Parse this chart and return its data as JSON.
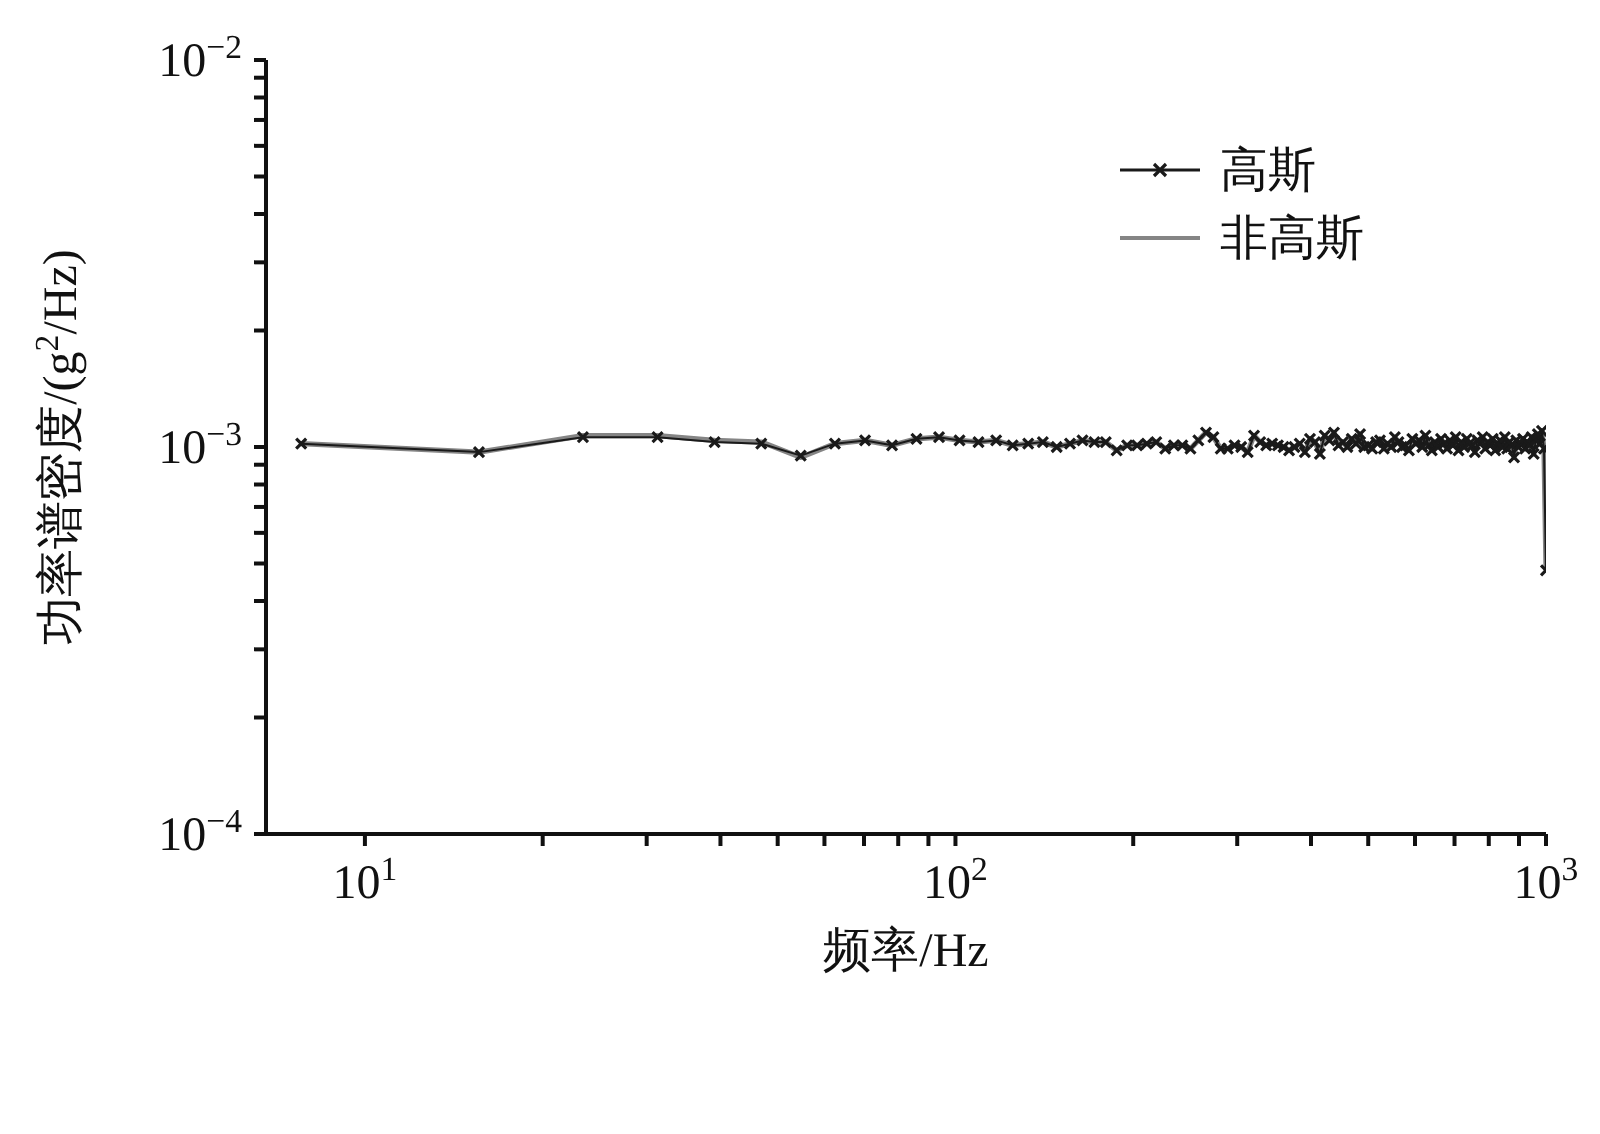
{
  "chart_data": {
    "type": "line",
    "xlabel": "频率/Hz",
    "ylabel": "功率谱密度/(g$^{2}$/Hz)",
    "log": "xy",
    "grid": false,
    "legend": "top right",
    "xlim": [
      6.8,
      1000
    ],
    "ylim": [
      0.0001,
      0.01
    ],
    "xticks": [
      {
        "value": 10,
        "label": "10$^{1}$"
      },
      {
        "value": 20,
        "label": null
      },
      {
        "value": 30,
        "label": null
      },
      {
        "value": 40,
        "label": null
      },
      {
        "value": 50,
        "label": null
      },
      {
        "value": 60,
        "label": null
      },
      {
        "value": 70,
        "label": null
      },
      {
        "value": 80,
        "label": null
      },
      {
        "value": 90,
        "label": null
      },
      {
        "value": 100,
        "label": "10$^{2}$"
      },
      {
        "value": 200,
        "label": null
      },
      {
        "value": 300,
        "label": null
      },
      {
        "value": 400,
        "label": null
      },
      {
        "value": 500,
        "label": null
      },
      {
        "value": 600,
        "label": null
      },
      {
        "value": 700,
        "label": null
      },
      {
        "value": 800,
        "label": null
      },
      {
        "value": 900,
        "label": null
      },
      {
        "value": 1000,
        "label": "10$^{3}$"
      }
    ],
    "yticks": [
      {
        "value": 0.0001,
        "label": "10$^{−4}$"
      },
      {
        "value": 0.0002,
        "label": null
      },
      {
        "value": 0.0003,
        "label": null
      },
      {
        "value": 0.0004,
        "label": null
      },
      {
        "value": 0.0005,
        "label": null
      },
      {
        "value": 0.0006,
        "label": null
      },
      {
        "value": 0.0007,
        "label": null
      },
      {
        "value": 0.0008,
        "label": null
      },
      {
        "value": 0.0009,
        "label": null
      },
      {
        "value": 0.001,
        "label": "10$^{−3}$"
      },
      {
        "value": 0.002,
        "label": null
      },
      {
        "value": 0.003,
        "label": null
      },
      {
        "value": 0.004,
        "label": null
      },
      {
        "value": 0.005,
        "label": null
      },
      {
        "value": 0.006,
        "label": null
      },
      {
        "value": 0.007,
        "label": null
      },
      {
        "value": 0.008,
        "label": null
      },
      {
        "value": 0.009,
        "label": null
      },
      {
        "value": 0.01,
        "label": "10$^{−2}$"
      }
    ],
    "x": [
      7.8,
      15.6,
      23.4,
      31.3,
      39.1,
      46.9,
      54.7,
      62.5,
      70.3,
      78.1,
      85.9,
      93.8,
      101.6,
      109.4,
      117.2,
      125,
      132.8,
      140.6,
      148.4,
      156.3,
      164.1,
      171.9,
      179.7,
      187.5,
      195.3,
      203.1,
      210.9,
      218.8,
      226.6,
      234.4,
      242.2,
      250,
      257.8,
      265.6,
      273.4,
      281.3,
      289.1,
      296.9,
      304.7,
      312.5,
      320.3,
      328.1,
      335.9,
      343.8,
      351.6,
      359.4,
      367.2,
      375,
      382.8,
      390.6,
      398.4,
      406.3,
      414.1,
      421.9,
      429.7,
      437.5,
      445.3,
      453.1,
      460.9,
      468.8,
      476.6,
      484.4,
      492.2,
      500,
      507.8,
      515.6,
      523.4,
      531.3,
      539.1,
      546.9,
      554.7,
      562.5,
      570.3,
      578.1,
      585.9,
      593.8,
      601.6,
      609.4,
      617.2,
      625,
      632.8,
      640.6,
      648.4,
      656.3,
      664.1,
      671.9,
      679.7,
      687.5,
      695.3,
      703.1,
      710.9,
      718.8,
      726.6,
      734.4,
      742.2,
      750,
      757.8,
      765.6,
      773.4,
      781.3,
      789.1,
      796.9,
      804.7,
      812.5,
      820.3,
      828.1,
      835.9,
      843.8,
      851.6,
      859.4,
      867.2,
      875,
      882.8,
      890.6,
      898.4,
      906.3,
      914.1,
      921.9,
      929.7,
      937.5,
      945.3,
      953.1,
      960.9,
      968.8,
      976.6,
      984.4,
      992.2,
      1000
    ],
    "series": [
      {
        "name": "高斯",
        "color": "#1a1a1a",
        "marker": "cross",
        "values": [
          0.00102,
          0.00097,
          0.00106,
          0.00106,
          0.00103,
          0.00102,
          0.00095,
          0.00102,
          0.00104,
          0.00101,
          0.00105,
          0.00106,
          0.00104,
          0.00103,
          0.00104,
          0.00101,
          0.00102,
          0.00103,
          0.001,
          0.00102,
          0.00104,
          0.00103,
          0.00103,
          0.00098,
          0.00101,
          0.00101,
          0.00102,
          0.00103,
          0.00099,
          0.00101,
          0.00101,
          0.00099,
          0.00104,
          0.00109,
          0.00106,
          0.00099,
          0.00099,
          0.00101,
          0.001,
          0.00097,
          0.00107,
          0.00103,
          0.00101,
          0.00102,
          0.00101,
          0.001,
          0.00098,
          0.001,
          0.00102,
          0.00097,
          0.00105,
          0.00103,
          0.00096,
          0.00107,
          0.00104,
          0.00109,
          0.00101,
          0.00103,
          0.001,
          0.00105,
          0.00102,
          0.00108,
          0.001,
          0.00101,
          0.00099,
          0.00103,
          0.00104,
          0.00099,
          0.00102,
          0.001,
          0.00106,
          0.00103,
          0.001,
          0.00101,
          0.00098,
          0.00105,
          0.00102,
          0.00104,
          0.001,
          0.00107,
          0.00101,
          0.00098,
          0.00103,
          0.001,
          0.00105,
          0.00102,
          0.00099,
          0.00104,
          0.00101,
          0.00106,
          0.00098,
          0.00103,
          0.001,
          0.00105,
          0.00102,
          0.00101,
          0.00097,
          0.00104,
          0.00102,
          0.00106,
          0.00099,
          0.00103,
          0.00101,
          0.00105,
          0.00098,
          0.00102,
          0.00104,
          0.001,
          0.00106,
          0.00099,
          0.00103,
          0.00101,
          0.00094,
          0.00104,
          0.001,
          0.00102,
          0.00105,
          0.00099,
          0.00103,
          0.00101,
          0.00106,
          0.00096,
          0.00104,
          0.00108,
          0.00102,
          0.0011,
          0.00099,
          0.00048
        ]
      },
      {
        "name": "非高斯",
        "color": "#858585",
        "marker": "none",
        "values": [
          0.00102,
          0.00097,
          0.00107,
          0.00107,
          0.00104,
          0.00103,
          0.00094,
          0.00102,
          0.00104,
          0.00101,
          0.00105,
          0.00106,
          0.00104,
          0.00103,
          0.00104,
          0.00101,
          0.00102,
          0.00103,
          0.001,
          0.00102,
          0.00104,
          0.00103,
          0.00103,
          0.00098,
          0.00101,
          0.00101,
          0.00102,
          0.00103,
          0.00099,
          0.00101,
          0.00101,
          0.00099,
          0.00104,
          0.00109,
          0.00106,
          0.00099,
          0.00099,
          0.00101,
          0.001,
          0.00097,
          0.00107,
          0.00103,
          0.00101,
          0.00102,
          0.00101,
          0.001,
          0.00098,
          0.001,
          0.00102,
          0.00097,
          0.00105,
          0.00103,
          0.00096,
          0.00107,
          0.00104,
          0.00109,
          0.00101,
          0.00103,
          0.001,
          0.00105,
          0.00102,
          0.00108,
          0.001,
          0.00101,
          0.00099,
          0.00103,
          0.00104,
          0.00099,
          0.00102,
          0.001,
          0.00106,
          0.00103,
          0.001,
          0.00101,
          0.00098,
          0.00105,
          0.00102,
          0.00104,
          0.001,
          0.00107,
          0.00101,
          0.00098,
          0.00103,
          0.001,
          0.00105,
          0.00102,
          0.00099,
          0.00104,
          0.00101,
          0.00106,
          0.00098,
          0.00103,
          0.001,
          0.00105,
          0.00102,
          0.00101,
          0.00097,
          0.00104,
          0.00102,
          0.00106,
          0.00099,
          0.00103,
          0.00101,
          0.00105,
          0.00098,
          0.00102,
          0.00104,
          0.001,
          0.00106,
          0.00099,
          0.00103,
          0.00101,
          0.00094,
          0.00104,
          0.001,
          0.00102,
          0.00105,
          0.00099,
          0.00103,
          0.00101,
          0.00106,
          0.00096,
          0.00104,
          0.00108,
          0.00102,
          0.0011,
          0.00099,
          0.00048
        ]
      }
    ]
  }
}
